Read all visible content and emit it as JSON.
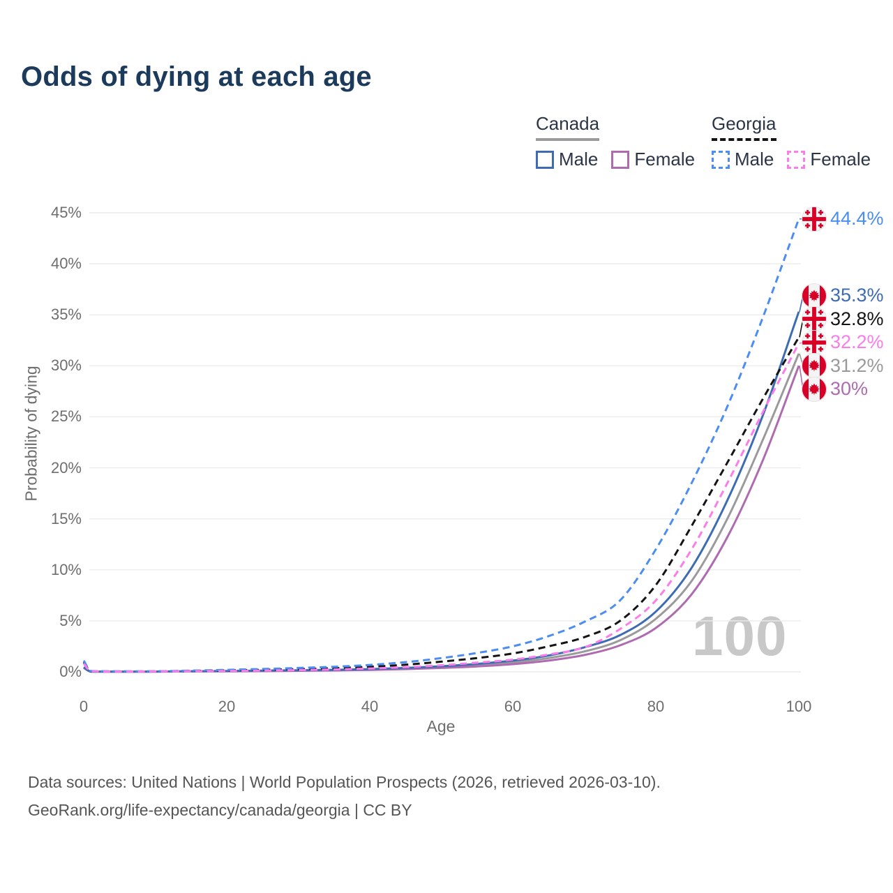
{
  "title": "Odds of dying at each age",
  "legend": {
    "groups": [
      {
        "label": "Canada",
        "line_style": "solid",
        "underline_color": "#9a9a9a",
        "items": [
          {
            "label": "Male",
            "color": "#3e6cb3"
          },
          {
            "label": "Female",
            "color": "#ae6bb0"
          }
        ]
      },
      {
        "label": "Georgia",
        "line_style": "dashed",
        "underline_color": "#141414",
        "items": [
          {
            "label": "Male",
            "color": "#4b8df0"
          },
          {
            "label": "Female",
            "color": "#fb7de9"
          }
        ]
      }
    ]
  },
  "axes": {
    "x_label": "Age",
    "y_label": "Probability of dying",
    "x_ticks": [
      0,
      20,
      40,
      60,
      80,
      100
    ],
    "y_tick_values": [
      0,
      5,
      10,
      15,
      20,
      25,
      30,
      35,
      40,
      45
    ],
    "y_tick_labels": [
      "0%",
      "5%",
      "10%",
      "15%",
      "20%",
      "25%",
      "30%",
      "35%",
      "40%",
      "45%"
    ],
    "grid_color": "#ececec"
  },
  "watermark": "100",
  "footer": {
    "line1": "Data sources: United Nations | World Population Prospects (2026, retrieved 2026-03-10).",
    "line2": "GeoRank.org/life-expectancy/canada/georgia | CC BY"
  },
  "chart_data": {
    "type": "line",
    "xlabel": "Age",
    "ylabel": "Probability of dying",
    "xlim": [
      0,
      100
    ],
    "ylim": [
      0,
      45
    ],
    "grid": true,
    "x": [
      0,
      1,
      5,
      10,
      15,
      20,
      25,
      30,
      35,
      40,
      45,
      50,
      55,
      60,
      65,
      70,
      75,
      80,
      85,
      90,
      95,
      100
    ],
    "unit": "percent",
    "series": [
      {
        "name": "Canada Both sexes",
        "country": "Canada",
        "flag": "canada",
        "color": "#9a9a9a",
        "dash": "solid",
        "values": [
          0.42,
          0.03,
          0.02,
          0.03,
          0.05,
          0.07,
          0.1,
          0.13,
          0.17,
          0.23,
          0.32,
          0.46,
          0.65,
          0.92,
          1.35,
          2.0,
          3.1,
          5.2,
          8.9,
          15.0,
          22.8,
          31.2
        ],
        "end_label": "31.2%"
      },
      {
        "name": "Canada Female",
        "country": "Canada",
        "flag": "canada",
        "color": "#ae6bb0",
        "dash": "solid",
        "values": [
          0.38,
          0.02,
          0.02,
          0.02,
          0.04,
          0.05,
          0.07,
          0.1,
          0.14,
          0.19,
          0.27,
          0.38,
          0.53,
          0.75,
          1.1,
          1.65,
          2.6,
          4.3,
          7.6,
          13.2,
          20.8,
          30.0
        ],
        "end_label": "30%"
      },
      {
        "name": "Canada Male",
        "country": "Canada",
        "flag": "canada",
        "color": "#3e6cb3",
        "dash": "solid",
        "values": [
          0.45,
          0.03,
          0.02,
          0.03,
          0.06,
          0.09,
          0.12,
          0.15,
          0.2,
          0.27,
          0.38,
          0.55,
          0.78,
          1.1,
          1.6,
          2.4,
          3.6,
          5.9,
          10.2,
          16.8,
          25.2,
          35.3
        ],
        "end_label": "35.3%"
      },
      {
        "name": "Georgia Both sexes",
        "country": "Georgia",
        "flag": "georgia",
        "color": "#141414",
        "dash": "dashed",
        "values": [
          0.95,
          0.07,
          0.04,
          0.05,
          0.09,
          0.14,
          0.2,
          0.27,
          0.36,
          0.5,
          0.7,
          1.0,
          1.35,
          1.8,
          2.5,
          3.4,
          5.0,
          8.5,
          14.3,
          20.5,
          26.8,
          32.8
        ],
        "end_label": "32.8%"
      },
      {
        "name": "Georgia Male",
        "country": "Georgia",
        "flag": "georgia",
        "color": "#4b8df0",
        "dash": "dashed",
        "values": [
          1.1,
          0.08,
          0.05,
          0.06,
          0.12,
          0.2,
          0.28,
          0.38,
          0.5,
          0.68,
          0.95,
          1.35,
          1.85,
          2.5,
          3.5,
          4.9,
          7.0,
          12.0,
          18.5,
          26.0,
          34.8,
          44.4
        ],
        "end_label": "44.4%"
      },
      {
        "name": "Georgia Female",
        "country": "Georgia",
        "flag": "georgia",
        "color": "#fb7de9",
        "dash": "dashed",
        "values": [
          0.8,
          0.06,
          0.03,
          0.04,
          0.06,
          0.09,
          0.12,
          0.17,
          0.23,
          0.33,
          0.46,
          0.65,
          0.9,
          1.2,
          1.7,
          2.4,
          4.2,
          7.0,
          12.0,
          18.5,
          25.5,
          32.2
        ],
        "end_label": "32.2%"
      }
    ]
  }
}
